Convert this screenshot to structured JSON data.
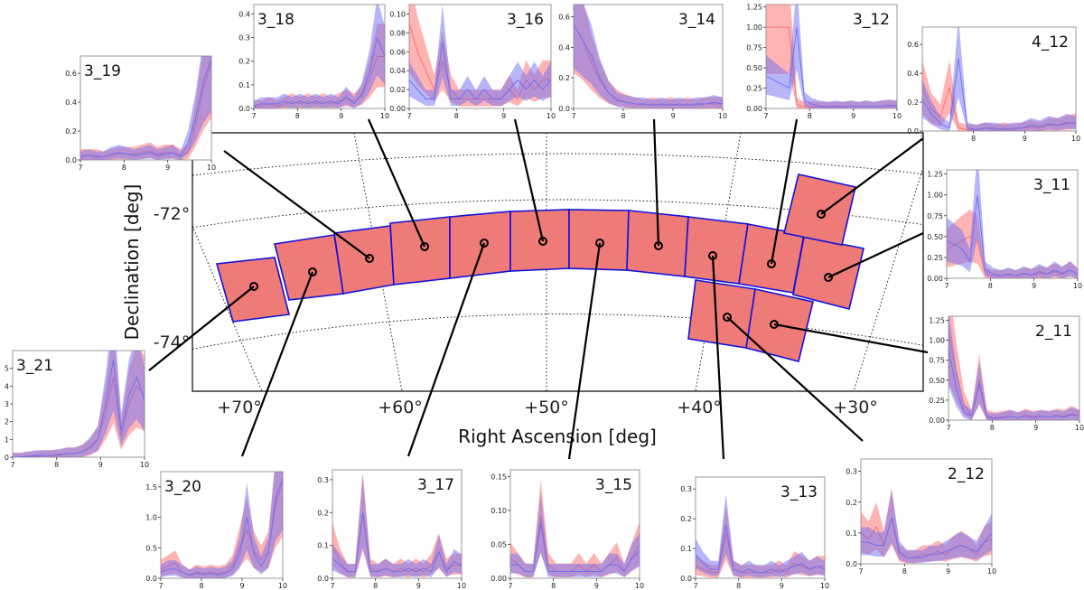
{
  "colors": {
    "tile_fill": "#ee7b78",
    "tile_edge": "#1010dd",
    "red": "#ff6a6a",
    "blue": "#6d6df2",
    "frame": "#000000",
    "grid": "#000000"
  },
  "chart_data": {
    "type": "map-with-insets",
    "main": {
      "xlabel": "Right Ascension [deg]",
      "ylabel": "Declination [deg]",
      "x_ticks": [
        "+70°",
        "+60°",
        "+50°",
        "+40°",
        "+30°"
      ],
      "y_ticks": [
        "-72°",
        "-74°"
      ],
      "tiles": [
        {
          "id": "3_21",
          "ra": 67.5,
          "dec": -73.2
        },
        {
          "id": "3_20",
          "ra": 63.5,
          "dec": -72.9
        },
        {
          "id": "3_19",
          "ra": 59.5,
          "dec": -72.7
        },
        {
          "id": "3_18",
          "ra": 56.0,
          "dec": -72.5
        },
        {
          "id": "3_17",
          "ra": 52.5,
          "dec": -72.4
        },
        {
          "id": "3_16",
          "ra": 49.0,
          "dec": -72.4
        },
        {
          "id": "3_15",
          "ra": 45.5,
          "dec": -72.4
        },
        {
          "id": "3_14",
          "ra": 42.0,
          "dec": -72.5
        },
        {
          "id": "3_13",
          "ra": 38.5,
          "dec": -72.6
        },
        {
          "id": "3_12",
          "ra": 35.0,
          "dec": -72.8
        },
        {
          "id": "3_11",
          "ra": 31.5,
          "dec": -73.0
        },
        {
          "id": "4_12",
          "ra": 32.5,
          "dec": -71.8
        },
        {
          "id": "2_12",
          "ra": 37.5,
          "dec": -73.9
        },
        {
          "id": "2_11",
          "ra": 34.0,
          "dec": -74.2
        }
      ]
    },
    "insets": [
      {
        "id": "3_19",
        "title": "3_19",
        "xlim": [
          7,
          10
        ],
        "yticks": [
          "0.0",
          "0.2",
          "0.4",
          "0.6"
        ],
        "ylim": [
          0,
          0.72
        ],
        "red": [
          0.03,
          0.03,
          0.03,
          0.02,
          0.03,
          0.04,
          0.04,
          0.04,
          0.05,
          0.06,
          0.04,
          0.05,
          0.05,
          0.03,
          0.05,
          0.25,
          0.5,
          0.68
        ],
        "blue": [
          0.02,
          0.03,
          0.02,
          0.02,
          0.04,
          0.05,
          0.04,
          0.03,
          0.04,
          0.05,
          0.03,
          0.04,
          0.05,
          0.02,
          0.12,
          0.3,
          0.55,
          0.7
        ]
      },
      {
        "id": "3_18",
        "title": "3_18",
        "xlim": [
          7,
          10
        ],
        "yticks": [
          "0.0",
          "0.1",
          "0.2",
          "0.3",
          "0.4"
        ],
        "ylim": [
          0,
          0.44
        ],
        "red": [
          0.01,
          0.01,
          0.02,
          0.01,
          0.02,
          0.03,
          0.02,
          0.03,
          0.02,
          0.03,
          0.02,
          0.03,
          0.04,
          0.03,
          0.05,
          0.12,
          0.22,
          0.22
        ],
        "blue": [
          0.01,
          0.02,
          0.02,
          0.02,
          0.03,
          0.02,
          0.03,
          0.02,
          0.03,
          0.02,
          0.03,
          0.02,
          0.05,
          0.02,
          0.06,
          0.15,
          0.3,
          0.22
        ]
      },
      {
        "id": "3_16",
        "title": "3_16",
        "xlim": [
          7,
          10
        ],
        "yticks": [
          "0.00",
          "0.02",
          "0.04",
          "0.06",
          "0.08",
          "0.10"
        ],
        "ylim": [
          0,
          0.11
        ],
        "red": [
          0.09,
          0.06,
          0.04,
          0.02,
          0.05,
          0.02,
          0.01,
          0.01,
          0.01,
          0.01,
          0.01,
          0.01,
          0.02,
          0.01,
          0.03,
          0.02,
          0.03,
          0.03
        ],
        "blue": [
          0.03,
          0.02,
          0.01,
          0.01,
          0.07,
          0.01,
          0.01,
          0.02,
          0.01,
          0.02,
          0.01,
          0.01,
          0.02,
          0.03,
          0.02,
          0.03,
          0.02,
          0.03
        ]
      },
      {
        "id": "3_14",
        "title": "3_14",
        "xlim": [
          7,
          10
        ],
        "yticks": [
          "0.0",
          "0.2",
          "0.4",
          "0.6"
        ],
        "ylim": [
          0,
          0.68
        ],
        "red": [
          0.55,
          0.45,
          0.3,
          0.18,
          0.1,
          0.06,
          0.04,
          0.03,
          0.02,
          0.03,
          0.02,
          0.03,
          0.02,
          0.03,
          0.02,
          0.03,
          0.03,
          0.03
        ],
        "blue": [
          0.55,
          0.45,
          0.35,
          0.2,
          0.1,
          0.05,
          0.04,
          0.03,
          0.03,
          0.02,
          0.03,
          0.02,
          0.03,
          0.02,
          0.03,
          0.03,
          0.04,
          0.03
        ]
      },
      {
        "id": "3_12",
        "title": "3_12",
        "xlim": [
          7,
          10
        ],
        "yticks": [
          "0.00",
          "0.25",
          "0.50",
          "0.75",
          "1.00",
          "1.25"
        ],
        "ylim": [
          0,
          1.28
        ],
        "red": [
          1.0,
          1.0,
          1.0,
          1.0,
          0.05,
          0.02,
          0.02,
          0.02,
          0.02,
          0.02,
          0.02,
          0.03,
          0.02,
          0.03,
          0.02,
          0.03,
          0.03,
          0.03
        ],
        "blue": [
          0.4,
          0.35,
          0.3,
          0.25,
          1.0,
          0.1,
          0.05,
          0.03,
          0.02,
          0.03,
          0.02,
          0.03,
          0.02,
          0.03,
          0.02,
          0.03,
          0.04,
          0.03
        ]
      },
      {
        "id": "4_12",
        "title": "4_12",
        "xlim": [
          7,
          10
        ],
        "yticks": [
          "0.0",
          "0.2",
          "0.4",
          "0.6"
        ],
        "ylim": [
          0,
          0.72
        ],
        "red": [
          0.3,
          0.15,
          0.1,
          0.3,
          0.02,
          0.01,
          0.01,
          0.02,
          0.01,
          0.02,
          0.01,
          0.02,
          0.03,
          0.02,
          0.04,
          0.04,
          0.05,
          0.06
        ],
        "blue": [
          0.22,
          0.12,
          0.05,
          0.02,
          0.5,
          0.02,
          0.01,
          0.02,
          0.02,
          0.01,
          0.02,
          0.02,
          0.04,
          0.03,
          0.05,
          0.04,
          0.06,
          0.05
        ]
      },
      {
        "id": "3_11",
        "title": "3_11",
        "xlim": [
          7,
          10
        ],
        "yticks": [
          "0.00",
          "0.25",
          "0.50",
          "0.75",
          "1.00",
          "1.25"
        ],
        "ylim": [
          0,
          1.3
        ],
        "red": [
          0.35,
          0.4,
          0.45,
          0.5,
          0.45,
          0.05,
          0.03,
          0.03,
          0.04,
          0.03,
          0.05,
          0.04,
          0.06,
          0.05,
          0.08,
          0.05,
          0.1,
          0.05
        ],
        "blue": [
          0.45,
          0.4,
          0.35,
          0.2,
          1.0,
          0.1,
          0.05,
          0.03,
          0.05,
          0.03,
          0.06,
          0.04,
          0.08,
          0.05,
          0.1,
          0.06,
          0.1,
          0.04
        ]
      },
      {
        "id": "2_11",
        "title": "2_11",
        "xlim": [
          7,
          10
        ],
        "yticks": [
          "0.00",
          "0.25",
          "0.50",
          "0.75",
          "1.00",
          "1.25"
        ],
        "ylim": [
          0,
          1.3
        ],
        "red": [
          1.1,
          0.6,
          0.2,
          0.05,
          0.5,
          0.05,
          0.03,
          0.04,
          0.05,
          0.03,
          0.06,
          0.04,
          0.05,
          0.04,
          0.06,
          0.05,
          0.08,
          0.05
        ],
        "blue": [
          0.9,
          0.4,
          0.1,
          0.05,
          0.45,
          0.03,
          0.02,
          0.03,
          0.05,
          0.03,
          0.05,
          0.03,
          0.05,
          0.04,
          0.05,
          0.04,
          0.07,
          0.05
        ]
      },
      {
        "id": "3_21",
        "title": "3_21",
        "xlim": [
          7,
          10
        ],
        "yticks": [
          "0",
          "1",
          "2",
          "3",
          "4",
          "5"
        ],
        "ylim": [
          0,
          6
        ],
        "red": [
          0.0,
          0.0,
          0.05,
          0.05,
          0.1,
          0.1,
          0.1,
          0.2,
          0.2,
          0.3,
          0.5,
          1.0,
          2.5,
          4.5,
          1.2,
          3.0,
          4.0,
          3.5
        ],
        "blue": [
          0.0,
          0.0,
          0.05,
          0.1,
          0.1,
          0.1,
          0.15,
          0.2,
          0.2,
          0.3,
          0.6,
          1.0,
          3.0,
          5.5,
          1.5,
          3.5,
          4.5,
          3.2
        ]
      },
      {
        "id": "3_20",
        "title": "3_20",
        "xlim": [
          7,
          10
        ],
        "yticks": [
          "0.0",
          "0.5",
          "1.0",
          "1.5"
        ],
        "ylim": [
          0,
          1.75
        ],
        "red": [
          0.15,
          0.2,
          0.25,
          0.1,
          0.05,
          0.1,
          0.08,
          0.1,
          0.08,
          0.1,
          0.2,
          0.5,
          0.8,
          0.45,
          0.3,
          0.45,
          1.2,
          1.6
        ],
        "blue": [
          0.1,
          0.15,
          0.15,
          0.1,
          0.05,
          0.08,
          0.06,
          0.08,
          0.06,
          0.08,
          0.15,
          0.4,
          1.0,
          0.4,
          0.2,
          0.4,
          1.3,
          1.65
        ]
      },
      {
        "id": "3_17",
        "title": "3_17",
        "xlim": [
          7,
          10
        ],
        "yticks": [
          "0.0",
          "0.1",
          "0.2",
          "0.3"
        ],
        "ylim": [
          0,
          0.33
        ],
        "red": [
          0.1,
          0.05,
          0.02,
          0.02,
          0.2,
          0.03,
          0.02,
          0.03,
          0.02,
          0.03,
          0.02,
          0.03,
          0.02,
          0.04,
          0.08,
          0.03,
          0.04,
          0.04
        ],
        "blue": [
          0.06,
          0.04,
          0.02,
          0.02,
          0.2,
          0.02,
          0.02,
          0.03,
          0.02,
          0.02,
          0.03,
          0.02,
          0.03,
          0.02,
          0.08,
          0.02,
          0.05,
          0.04
        ]
      },
      {
        "id": "3_15",
        "title": "3_15",
        "xlim": [
          7,
          10
        ],
        "yticks": [
          "0.00",
          "0.05",
          "0.10",
          "0.15"
        ],
        "ylim": [
          0,
          0.16
        ],
        "red": [
          0.03,
          0.02,
          0.01,
          0.01,
          0.09,
          0.02,
          0.01,
          0.01,
          0.01,
          0.02,
          0.01,
          0.02,
          0.01,
          0.02,
          0.03,
          0.01,
          0.03,
          0.05
        ],
        "blue": [
          0.02,
          0.02,
          0.01,
          0.01,
          0.08,
          0.01,
          0.01,
          0.01,
          0.01,
          0.01,
          0.01,
          0.01,
          0.01,
          0.02,
          0.02,
          0.01,
          0.03,
          0.04
        ]
      },
      {
        "id": "3_13",
        "title": "3_13",
        "xlim": [
          7,
          10
        ],
        "yticks": [
          "0.0",
          "0.1",
          "0.2",
          "0.3"
        ],
        "ylim": [
          0,
          0.34
        ],
        "red": [
          0.04,
          0.03,
          0.02,
          0.02,
          0.15,
          0.03,
          0.02,
          0.02,
          0.02,
          0.02,
          0.02,
          0.03,
          0.02,
          0.05,
          0.04,
          0.03,
          0.04,
          0.04
        ],
        "blue": [
          0.08,
          0.05,
          0.03,
          0.03,
          0.18,
          0.03,
          0.02,
          0.03,
          0.02,
          0.02,
          0.03,
          0.02,
          0.03,
          0.04,
          0.05,
          0.03,
          0.04,
          0.03
        ]
      },
      {
        "id": "2_12",
        "title": "2_12",
        "xlim": [
          7,
          10
        ],
        "yticks": [
          "0.0",
          "0.1",
          "0.2",
          "0.3"
        ],
        "ylim": [
          0,
          0.34
        ],
        "red": [
          0.1,
          0.08,
          0.12,
          0.06,
          0.15,
          0.03,
          0.02,
          0.02,
          0.03,
          0.03,
          0.04,
          0.03,
          0.05,
          0.06,
          0.05,
          0.03,
          0.07,
          0.08
        ],
        "blue": [
          0.07,
          0.07,
          0.06,
          0.06,
          0.15,
          0.04,
          0.02,
          0.02,
          0.02,
          0.03,
          0.03,
          0.04,
          0.05,
          0.06,
          0.05,
          0.04,
          0.07,
          0.1
        ]
      }
    ]
  }
}
